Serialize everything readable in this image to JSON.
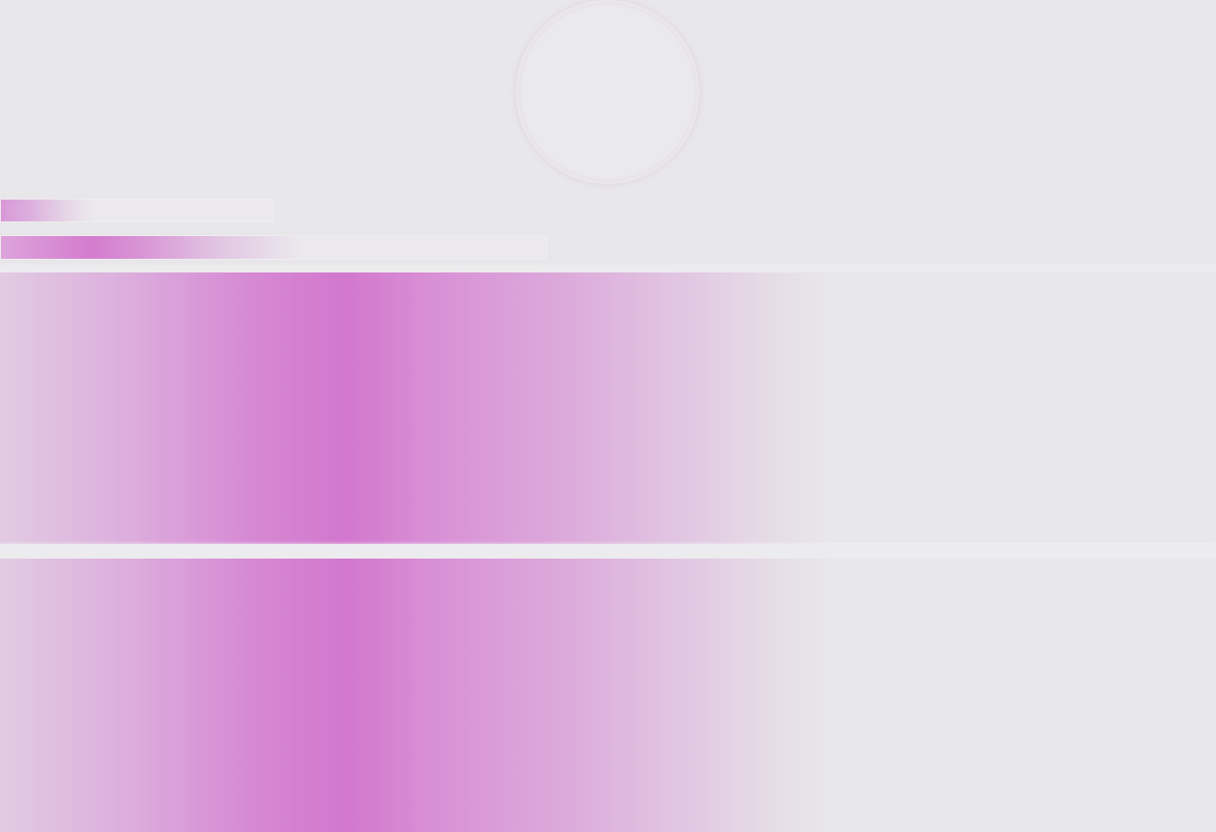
{
  "screen": {
    "background": "#e8e7ea",
    "accent": "#d277cd"
  },
  "skeleton": {
    "avatar": {
      "icon": "avatar-placeholder-icon"
    },
    "lines": [
      {
        "name": "text-line-short"
      },
      {
        "name": "text-line-long"
      }
    ],
    "blocks": [
      {
        "name": "content-block-1"
      },
      {
        "name": "content-block-2"
      }
    ]
  }
}
